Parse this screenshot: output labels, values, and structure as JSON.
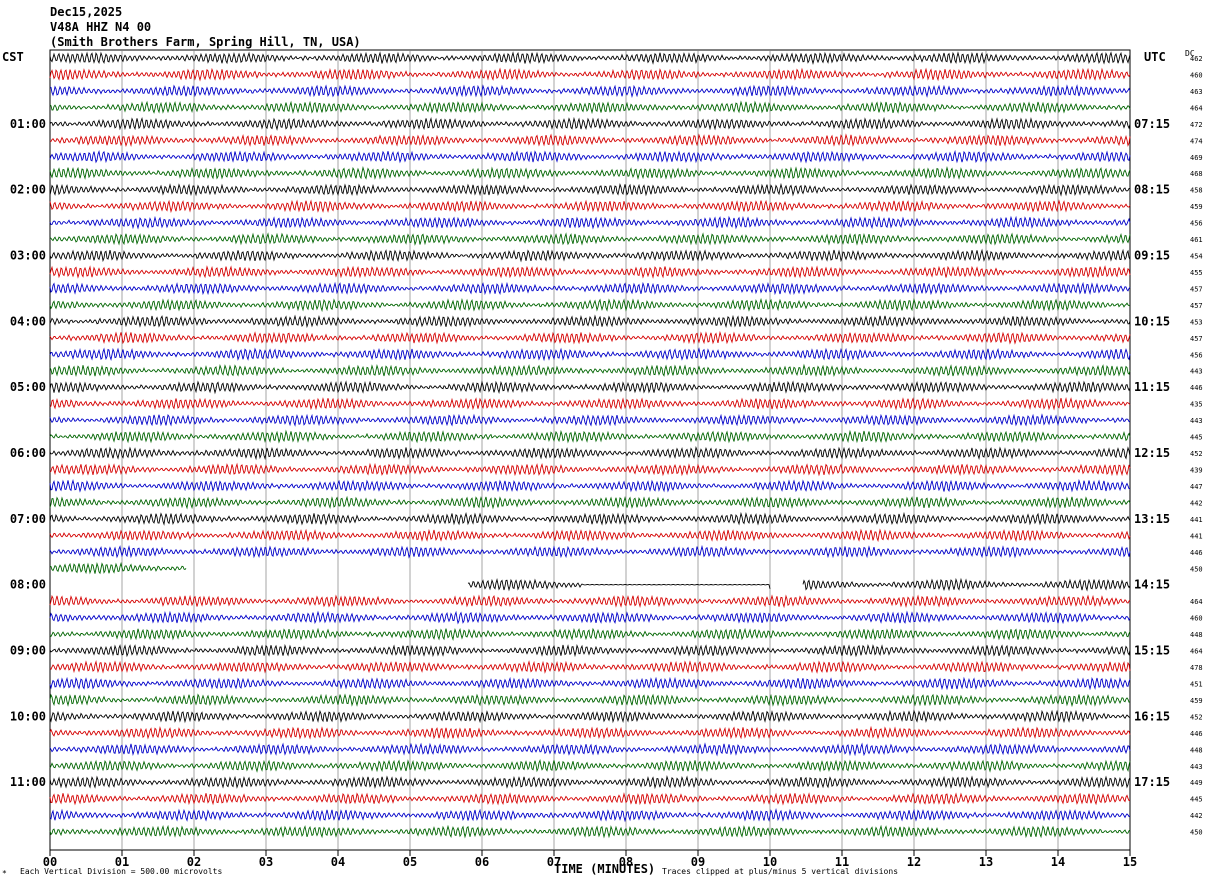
{
  "header": {
    "date": "Dec15,2025",
    "station": "V48A HHZ N4 00",
    "location": "(Smith Brothers Farm, Spring Hill, TN, USA)"
  },
  "left_tz": "CST",
  "right_tz": "UTC",
  "dc_label": "DC",
  "footer": {
    "scale": "Each Vertical Division =  500.00 microvolts",
    "xlabel": "TIME (MINUTES)",
    "clip": "Traces clipped at plus/minus 5 vertical divisions",
    "logo_mark": "*"
  },
  "colors": {
    "trace_cycle": [
      "#000000",
      "#d40000",
      "#0000c8",
      "#006400"
    ],
    "grid": "#808080"
  },
  "chart_data": {
    "type": "line",
    "description_type": "helicorder",
    "x_ticks": [
      "00",
      "01",
      "02",
      "03",
      "04",
      "05",
      "06",
      "07",
      "08",
      "09",
      "10",
      "11",
      "12",
      "13",
      "14",
      "15"
    ],
    "xlim": [
      0,
      15
    ],
    "rows_per_hour": 4,
    "row_count": 48,
    "left_hour_labels": [
      "01:00",
      "02:00",
      "03:00",
      "04:00",
      "05:00",
      "06:00",
      "07:00",
      "08:00",
      "09:00",
      "10:00",
      "11:00"
    ],
    "right_hour_labels": [
      "07:15",
      "08:15",
      "09:15",
      "10:15",
      "11:15",
      "12:15",
      "13:15",
      "14:15",
      "15:15",
      "16:15",
      "17:15"
    ],
    "dc_offsets": [
      462,
      460,
      463,
      464,
      472,
      474,
      469,
      468,
      458,
      459,
      456,
      461,
      454,
      455,
      457,
      457,
      453,
      457,
      456,
      443,
      446,
      435,
      443,
      445,
      452,
      439,
      447,
      442,
      441,
      441,
      446,
      450,
      null,
      464,
      460,
      448,
      464,
      478,
      451,
      459,
      452,
      446,
      448,
      443,
      449,
      445,
      442,
      450
    ],
    "gaps": [
      {
        "row": 31,
        "segments": [
          [
            0,
            1.9
          ]
        ]
      },
      {
        "row": 32,
        "segments": [
          [
            5.8,
            10.0
          ],
          [
            10.45,
            15
          ]
        ]
      }
    ],
    "grid": true
  }
}
